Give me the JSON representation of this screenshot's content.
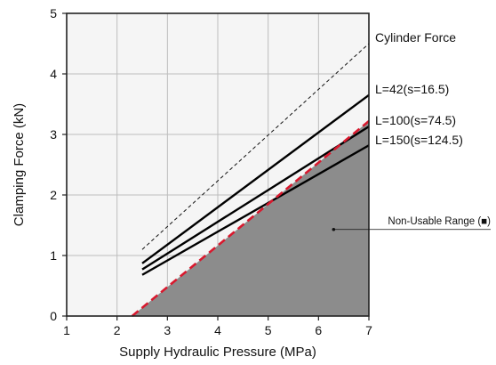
{
  "chart_data": {
    "type": "line",
    "xlabel": "Supply Hydraulic Pressure (MPa)",
    "ylabel": "Clamping Force (kN)",
    "xlim": [
      1,
      7
    ],
    "ylim": [
      0,
      5
    ],
    "xticks": [
      "1",
      "2",
      "3",
      "4",
      "5",
      "6",
      "7"
    ],
    "yticks": [
      "0",
      "1",
      "2",
      "3",
      "4",
      "5"
    ],
    "grid": true,
    "series": [
      {
        "name": "Cylinder Force",
        "style": "dashed",
        "color": "#111111",
        "points": [
          [
            2.5,
            1.1
          ],
          [
            7.0,
            4.5
          ]
        ]
      },
      {
        "name": "L=42(s=16.5)",
        "style": "solid",
        "color": "#000000",
        "points": [
          [
            2.5,
            0.87
          ],
          [
            7.0,
            3.65
          ]
        ]
      },
      {
        "name": "L=100(s=74.5)",
        "style": "solid",
        "color": "#000000",
        "points": [
          [
            2.5,
            0.77
          ],
          [
            7.0,
            3.13
          ]
        ]
      },
      {
        "name": "L=150(s=124.5)",
        "style": "solid",
        "color": "#000000",
        "points": [
          [
            2.5,
            0.68
          ],
          [
            7.0,
            2.82
          ]
        ]
      }
    ],
    "boundary": {
      "style": "dashed",
      "color": "#d8192e",
      "points": [
        [
          2.3,
          0.0
        ],
        [
          7.0,
          3.22
        ]
      ]
    },
    "non_usable_region": {
      "color": "#8c8c8c",
      "points": [
        [
          2.3,
          0.0
        ],
        [
          7.0,
          3.22
        ],
        [
          7.0,
          0.0
        ]
      ]
    },
    "annotation": {
      "text": "Non-Usable Range (■)",
      "point": [
        6.3,
        1.43
      ]
    }
  }
}
